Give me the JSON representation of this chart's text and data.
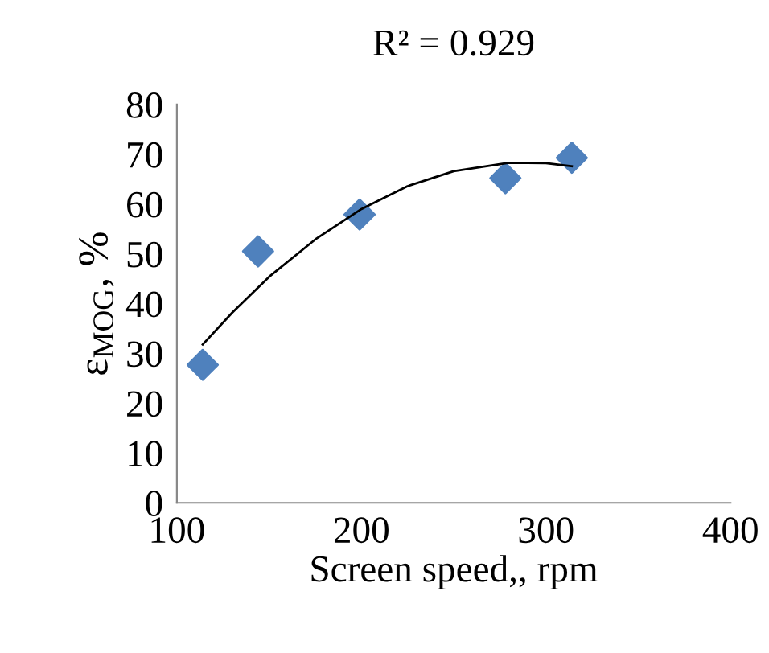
{
  "chart_data": {
    "type": "scatter",
    "title": "R² = 0.929",
    "xlabel": "Screen speed,, rpm",
    "ylabel": "ε$_{MOG}$, %",
    "xlim": [
      100,
      400
    ],
    "xticks": [
      100,
      200,
      300,
      400
    ],
    "ylim": [
      0,
      80
    ],
    "yticks": [
      0,
      10,
      20,
      30,
      40,
      50,
      60,
      70,
      80
    ],
    "grid": false,
    "legend": false,
    "series": [
      {
        "marker": "diamond",
        "color": "#4f81bd",
        "x": [
          114,
          144,
          199,
          278,
          314
        ],
        "values": [
          27.7,
          50.5,
          57.9,
          65.2,
          69.3
        ]
      },
      {
        "type": "line",
        "marker": "none",
        "line_style": "solid",
        "color": "#000000",
        "x": [
          114,
          130,
          150,
          175,
          200,
          225,
          250,
          280,
          300,
          314
        ],
        "values": [
          31.8,
          38.2,
          45.4,
          52.9,
          59.0,
          63.6,
          66.6,
          68.3,
          68.2,
          67.6
        ]
      }
    ]
  }
}
